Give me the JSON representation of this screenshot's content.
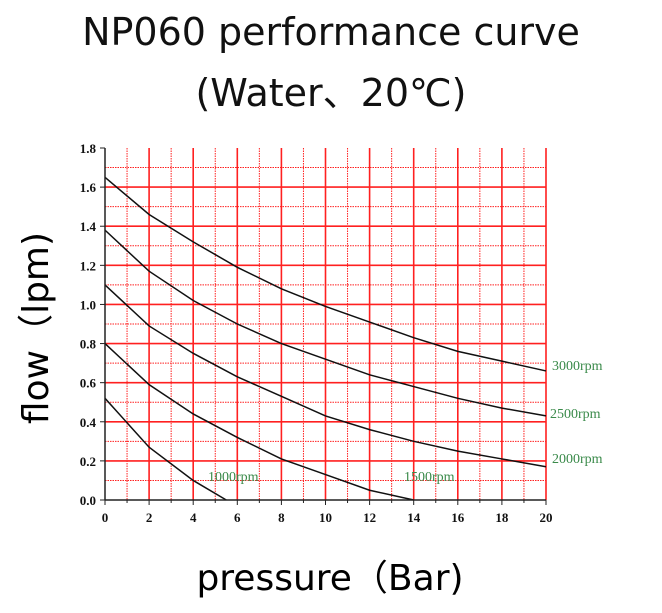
{
  "chart_data": {
    "type": "line",
    "title": "NP060 performance curve",
    "subtitle": "(Water、20℃)",
    "xlabel": "pressure（Bar)",
    "ylabel": "flow（lpm)",
    "xlim": [
      0,
      20
    ],
    "ylim": [
      0,
      1.8
    ],
    "xticks": [
      "0",
      "2",
      "4",
      "6",
      "8",
      "10",
      "12",
      "14",
      "16",
      "18",
      "20"
    ],
    "yticks": [
      "0.0",
      "0.2",
      "0.4",
      "0.6",
      "0.8",
      "1.0",
      "1.2",
      "1.4",
      "1.6",
      "1.8"
    ],
    "grid": true,
    "colors": {
      "grid": "#ff2020",
      "line": "#111111",
      "label": "#3a8a4a"
    },
    "series": [
      {
        "name": "3000rpm",
        "x": [
          0,
          2,
          4,
          6,
          8,
          10,
          12,
          14,
          16,
          18,
          20
        ],
        "y": [
          1.65,
          1.46,
          1.32,
          1.19,
          1.08,
          0.99,
          0.91,
          0.83,
          0.76,
          0.71,
          0.66
        ]
      },
      {
        "name": "2500rpm",
        "x": [
          0,
          2,
          4,
          6,
          8,
          10,
          12,
          14,
          16,
          18,
          20
        ],
        "y": [
          1.38,
          1.17,
          1.02,
          0.9,
          0.8,
          0.72,
          0.64,
          0.58,
          0.52,
          0.47,
          0.43
        ]
      },
      {
        "name": "2000rpm",
        "x": [
          0,
          2,
          4,
          6,
          8,
          10,
          12,
          14,
          16,
          18,
          20
        ],
        "y": [
          1.1,
          0.89,
          0.75,
          0.63,
          0.53,
          0.43,
          0.36,
          0.3,
          0.25,
          0.21,
          0.17
        ]
      },
      {
        "name": "1500rpm",
        "x": [
          0,
          2,
          4,
          6,
          8,
          10,
          12,
          14
        ],
        "y": [
          0.8,
          0.59,
          0.44,
          0.32,
          0.21,
          0.13,
          0.05,
          0.0
        ]
      },
      {
        "name": "1000rpm",
        "x": [
          0,
          2,
          4,
          5.5
        ],
        "y": [
          0.52,
          0.27,
          0.1,
          0.0
        ]
      }
    ]
  }
}
